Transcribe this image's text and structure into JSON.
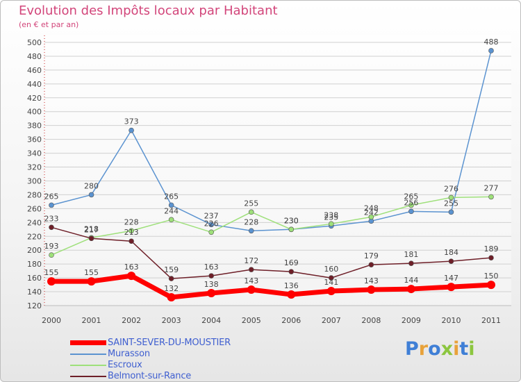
{
  "chart_data": {
    "type": "line",
    "title": "Evolution des Impôts locaux par Habitant",
    "subtitle": "(en € et par an)",
    "categories": [
      "2000",
      "2001",
      "2002",
      "2003",
      "2004",
      "2005",
      "2006",
      "2007",
      "2008",
      "2009",
      "2010",
      "2011"
    ],
    "ylim": [
      120,
      500
    ],
    "yticks": [
      120,
      140,
      160,
      180,
      200,
      220,
      240,
      260,
      280,
      300,
      320,
      340,
      360,
      380,
      400,
      420,
      440,
      460,
      480,
      500
    ],
    "grid": true,
    "legend_position": "bottom-left",
    "series": [
      {
        "name": "SAINT-SEVER-DU-MOUSTIER",
        "color": "#ff0000",
        "values": [
          155,
          155,
          163,
          132,
          138,
          143,
          136,
          141,
          143,
          144,
          147,
          150
        ]
      },
      {
        "name": "Murasson",
        "color": "#5b93d0",
        "values": [
          265,
          280,
          373,
          265,
          237,
          228,
          230,
          235,
          242,
          256,
          255,
          488
        ]
      },
      {
        "name": "Escroux",
        "color": "#9ee07a",
        "values": [
          193,
          218,
          228,
          244,
          226,
          255,
          230,
          238,
          248,
          265,
          276,
          277
        ]
      },
      {
        "name": "Belmont-sur-Rance",
        "color": "#6e1f28",
        "values": [
          233,
          217,
          213,
          159,
          163,
          172,
          169,
          160,
          179,
          181,
          184,
          189
        ]
      }
    ]
  },
  "logo": {
    "letters": [
      "P",
      "r",
      "o",
      "x",
      "i",
      "t",
      "i"
    ],
    "colors": [
      "#3f7fd6",
      "#e8a23a",
      "#3f7fd6",
      "#8cc63f",
      "#e8a23a",
      "#3f7fd6",
      "#8cc63f"
    ]
  }
}
